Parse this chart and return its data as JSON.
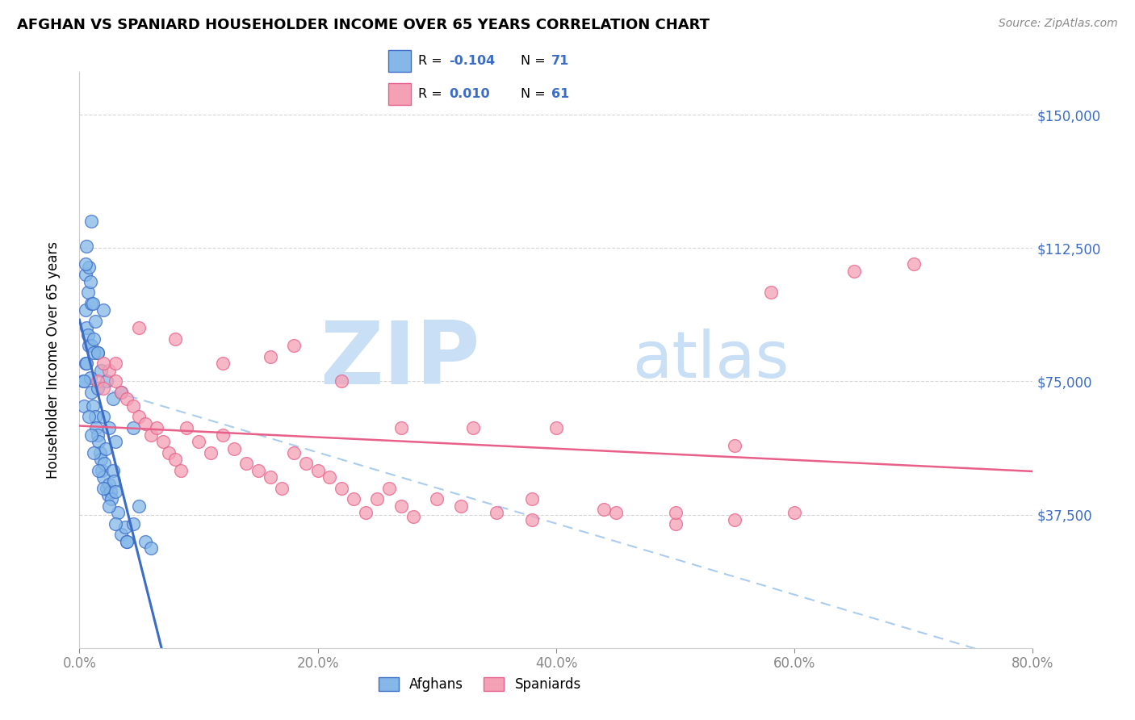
{
  "title": "AFGHAN VS SPANIARD HOUSEHOLDER INCOME OVER 65 YEARS CORRELATION CHART",
  "source": "Source: ZipAtlas.com",
  "xlabel_ticks": [
    "0.0%",
    "20.0%",
    "40.0%",
    "60.0%",
    "80.0%"
  ],
  "xlabel_vals": [
    0.0,
    20.0,
    40.0,
    60.0,
    80.0
  ],
  "ylabel_ticks": [
    "$37,500",
    "$75,000",
    "$112,500",
    "$150,000"
  ],
  "ylabel_vals": [
    37500,
    75000,
    112500,
    150000
  ],
  "ylabel_label": "Householder Income Over 65 years",
  "xlim": [
    0,
    80
  ],
  "ylim": [
    0,
    162000
  ],
  "afghan_R": "-0.104",
  "afghan_N": "71",
  "spaniard_R": "0.010",
  "spaniard_N": "61",
  "afghan_color": "#85b8e8",
  "spaniard_color": "#f4a0b5",
  "afghan_line_color": "#3b6cc7",
  "spaniard_line_color": "#e8608a",
  "dashed_line_color": "#aaccee",
  "watermark_zip": "ZIP",
  "watermark_atlas": "atlas",
  "watermark_color_zip": "#c8dff5",
  "watermark_color_atlas": "#c8dff5",
  "background": "#ffffff",
  "legend_label_1": "Afghans",
  "legend_label_2": "Spaniards",
  "afghans_x": [
    0.3,
    0.4,
    0.5,
    0.5,
    0.6,
    0.7,
    0.8,
    0.9,
    1.0,
    1.0,
    1.1,
    1.2,
    1.3,
    1.4,
    1.5,
    1.5,
    1.6,
    1.7,
    1.8,
    1.9,
    2.0,
    2.0,
    2.1,
    2.2,
    2.3,
    2.4,
    2.5,
    2.6,
    2.7,
    2.8,
    2.9,
    3.0,
    3.2,
    3.5,
    3.8,
    4.0,
    4.5,
    5.0,
    5.5,
    0.5,
    0.6,
    0.8,
    1.0,
    1.2,
    1.5,
    2.0,
    2.5,
    3.0,
    1.0,
    1.5,
    0.5,
    0.7,
    0.9,
    1.1,
    1.3,
    1.8,
    2.3,
    2.8,
    3.5,
    4.5,
    0.4,
    0.6,
    0.8,
    1.0,
    1.2,
    1.6,
    2.0,
    2.5,
    3.0,
    4.0,
    6.0
  ],
  "afghans_y": [
    75000,
    68000,
    80000,
    95000,
    90000,
    88000,
    85000,
    76000,
    72000,
    85000,
    68000,
    87000,
    65000,
    62000,
    60000,
    83000,
    58000,
    55000,
    53000,
    50000,
    48000,
    95000,
    52000,
    56000,
    45000,
    43000,
    46000,
    44000,
    42000,
    50000,
    47000,
    44000,
    38000,
    32000,
    34000,
    30000,
    35000,
    40000,
    30000,
    105000,
    113000,
    107000,
    97000,
    83000,
    73000,
    65000,
    62000,
    58000,
    120000,
    83000,
    108000,
    100000,
    103000,
    97000,
    92000,
    78000,
    75000,
    70000,
    72000,
    62000,
    75000,
    80000,
    65000,
    60000,
    55000,
    50000,
    45000,
    40000,
    35000,
    30000,
    28000
  ],
  "spaniards_x": [
    1.5,
    2.0,
    2.5,
    3.0,
    3.5,
    4.0,
    4.5,
    5.0,
    5.5,
    6.0,
    6.5,
    7.0,
    7.5,
    8.0,
    8.5,
    9.0,
    10.0,
    11.0,
    12.0,
    13.0,
    14.0,
    15.0,
    16.0,
    17.0,
    18.0,
    19.0,
    20.0,
    21.0,
    22.0,
    23.0,
    24.0,
    25.0,
    26.0,
    27.0,
    28.0,
    30.0,
    32.0,
    35.0,
    38.0,
    40.0,
    45.0,
    50.0,
    55.0,
    60.0,
    2.0,
    3.0,
    5.0,
    8.0,
    12.0,
    16.0,
    18.0,
    22.0,
    27.0,
    33.0,
    38.0,
    44.0,
    50.0,
    58.0,
    65.0,
    70.0,
    55.0
  ],
  "spaniards_y": [
    75000,
    73000,
    78000,
    80000,
    72000,
    70000,
    68000,
    65000,
    63000,
    60000,
    62000,
    58000,
    55000,
    53000,
    50000,
    62000,
    58000,
    55000,
    60000,
    56000,
    52000,
    50000,
    48000,
    45000,
    55000,
    52000,
    50000,
    48000,
    45000,
    42000,
    38000,
    42000,
    45000,
    40000,
    37000,
    42000,
    40000,
    38000,
    36000,
    62000,
    38000,
    35000,
    36000,
    38000,
    80000,
    75000,
    90000,
    87000,
    80000,
    82000,
    85000,
    75000,
    62000,
    62000,
    42000,
    39000,
    38000,
    100000,
    106000,
    108000,
    57000
  ]
}
